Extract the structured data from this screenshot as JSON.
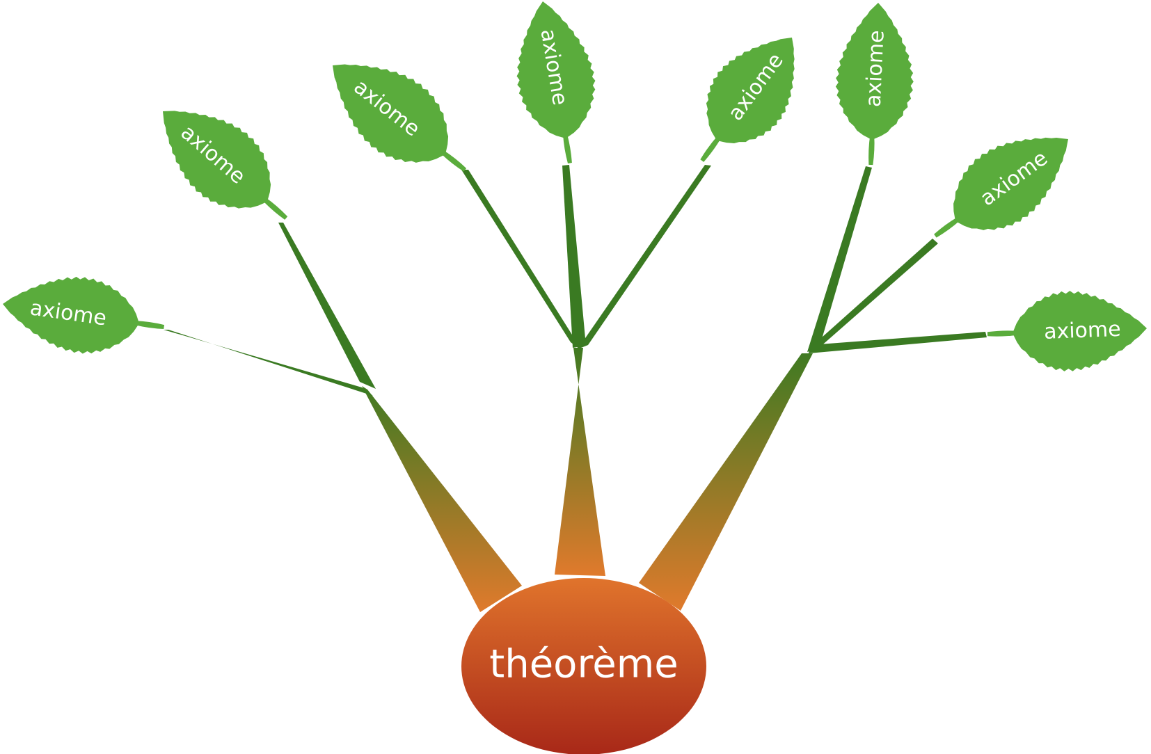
{
  "diagram": {
    "root": {
      "label": "théorème"
    },
    "leaves": [
      {
        "label": "axiome"
      },
      {
        "label": "axiome"
      },
      {
        "label": "axiome"
      },
      {
        "label": "axiome"
      },
      {
        "label": "axiome"
      },
      {
        "label": "axiome"
      },
      {
        "label": "axiome"
      },
      {
        "label": "axiome"
      }
    ],
    "colors": {
      "leaf": "#5aac3c",
      "stem": "#3a7a22",
      "branch_top": "#3f7a22",
      "branch_bottom": "#e07a2c",
      "root_top": "#e0742c",
      "root_bottom": "#a82818",
      "text": "#ffffff"
    }
  }
}
